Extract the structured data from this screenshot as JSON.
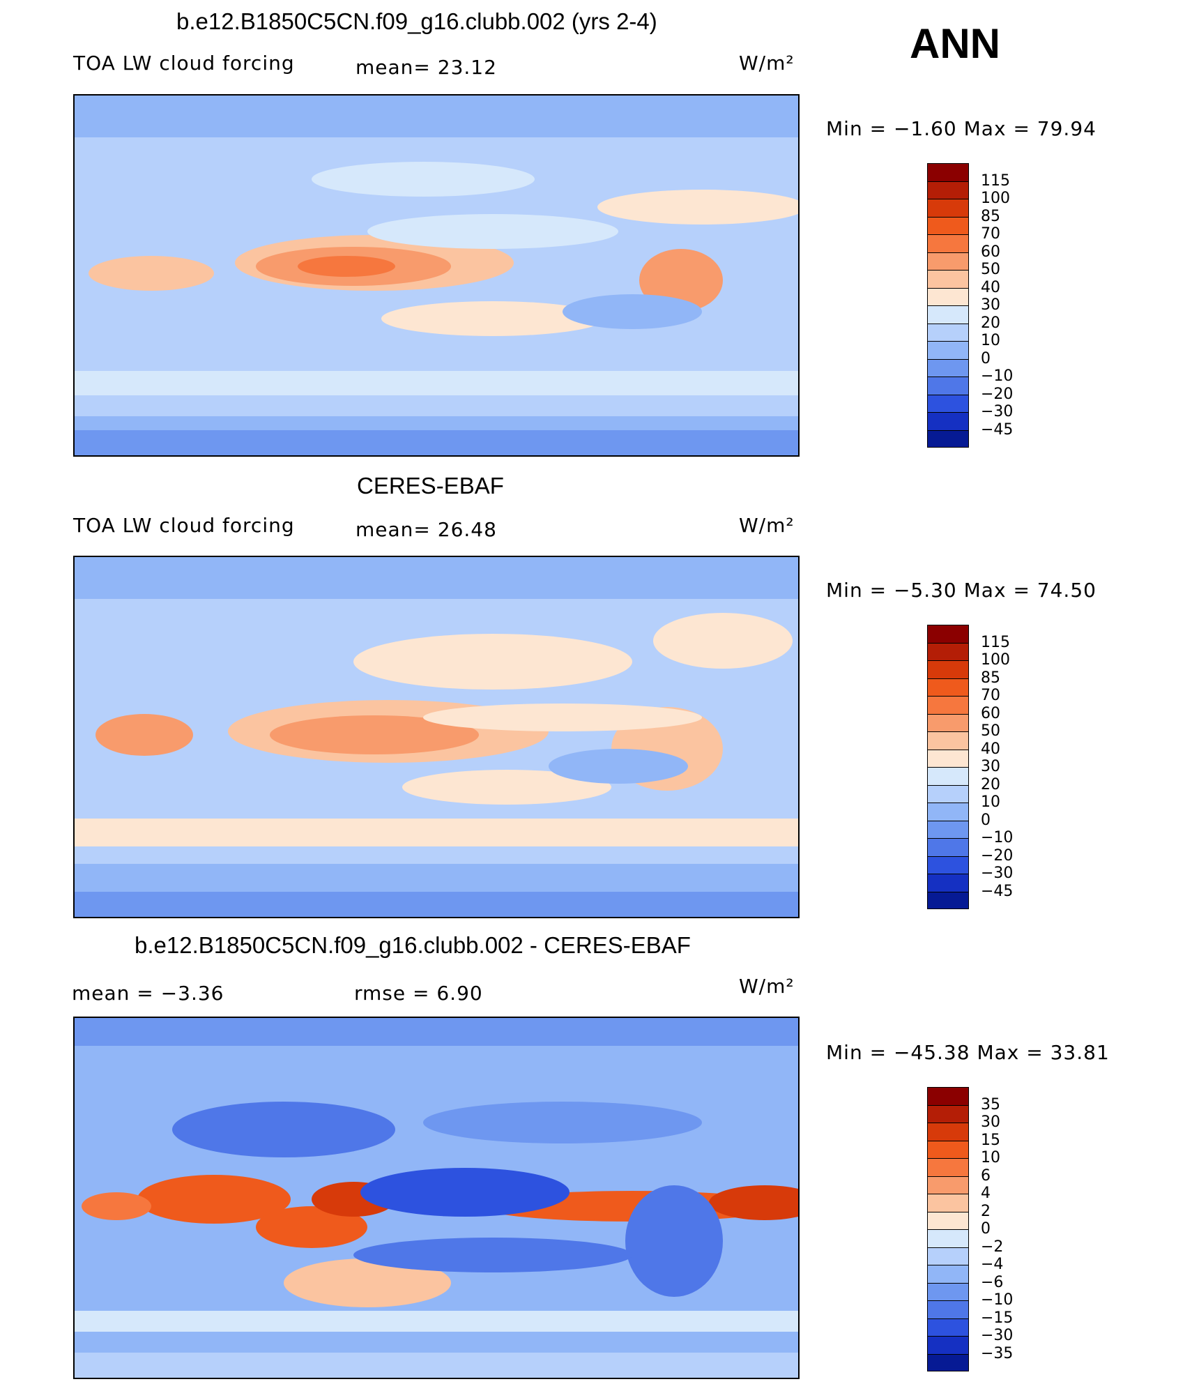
{
  "season": "ANN",
  "panels": [
    {
      "title": "b.e12.B1850C5CN.f09_g16.clubb.002 (yrs 2-4)",
      "left_label": "TOA LW cloud forcing",
      "mid_label": "mean=  23.12",
      "units": "W/m²",
      "minmax": "Min  =   −1.60  Max  =    79.94",
      "levels": [
        "115",
        "100",
        "85",
        "70",
        "60",
        "50",
        "40",
        "30",
        "20",
        "10",
        "0",
        "−10",
        "−20",
        "−30",
        "−45"
      ],
      "colors": [
        "#8b0000",
        "#b41e06",
        "#d73a0a",
        "#ef5a1c",
        "#f6773e",
        "#f89b6c",
        "#fbc4a0",
        "#fde6d2",
        "#d6e8fb",
        "#b6d0fb",
        "#91b6f7",
        "#6e97f0",
        "#4f77e8",
        "#2d52df",
        "#1530c2",
        "#061a94"
      ]
    },
    {
      "title": "CERES-EBAF",
      "left_label": "TOA LW cloud forcing",
      "mid_label": "mean=  26.48",
      "units": "W/m²",
      "minmax": "Min  =   −5.30  Max  =    74.50",
      "levels": [
        "115",
        "100",
        "85",
        "70",
        "60",
        "50",
        "40",
        "30",
        "20",
        "10",
        "0",
        "−10",
        "−20",
        "−30",
        "−45"
      ],
      "colors": [
        "#8b0000",
        "#b41e06",
        "#d73a0a",
        "#ef5a1c",
        "#f6773e",
        "#f89b6c",
        "#fbc4a0",
        "#fde6d2",
        "#d6e8fb",
        "#b6d0fb",
        "#91b6f7",
        "#6e97f0",
        "#4f77e8",
        "#2d52df",
        "#1530c2",
        "#061a94"
      ]
    },
    {
      "title": "b.e12.B1850C5CN.f09_g16.clubb.002 - CERES-EBAF",
      "left_label": "mean  =    −3.36",
      "mid_label": "rmse  =     6.90",
      "units": "W/m²",
      "minmax": "Min  = −45.38  Max  =    33.81",
      "levels": [
        "35",
        "30",
        "15",
        "10",
        "6",
        "4",
        "2",
        "0",
        "−2",
        "−4",
        "−6",
        "−10",
        "−15",
        "−30",
        "−35"
      ],
      "colors": [
        "#8b0000",
        "#b41e06",
        "#d73a0a",
        "#ef5a1c",
        "#f6773e",
        "#f89b6c",
        "#fbc4a0",
        "#fde6d2",
        "#d6e8fb",
        "#b6d0fb",
        "#91b6f7",
        "#6e97f0",
        "#4f77e8",
        "#2d52df",
        "#1530c2",
        "#061a94"
      ]
    }
  ]
}
